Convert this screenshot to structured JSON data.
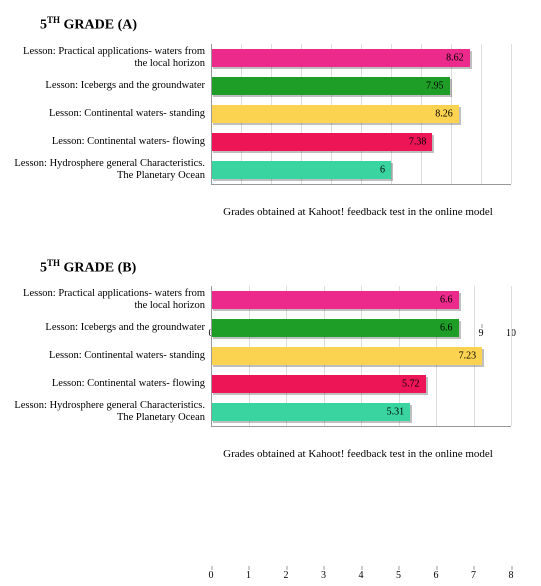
{
  "x_axis_title": "Grades obtained at Kahoot! feedback test in the online model",
  "grid_color": "#dddddd",
  "axis_color": "#999999",
  "charts": [
    {
      "title_prefix": "5",
      "title_sup": "TH",
      "title_suffix": " GRADE (A)",
      "x_max": 10,
      "x_tick_step": 1,
      "bars": [
        {
          "label": "Lesson: Practical applications- waters from the local horizon",
          "value": 8.62,
          "color": "#ec2a8b"
        },
        {
          "label": "Lesson: Icebergs and the groundwater",
          "value": 7.95,
          "color": "#1e9e27"
        },
        {
          "label": "Lesson: Continental waters- standing",
          "value": 8.26,
          "color": "#fcd251"
        },
        {
          "label": "Lesson: Continental waters- flowing",
          "value": 7.38,
          "color": "#ed1556"
        },
        {
          "label": "Lesson: Hydrosphere general Characteristics. The Planetary Ocean",
          "value": 6,
          "color": "#3ad4a0"
        }
      ]
    },
    {
      "title_prefix": "5",
      "title_sup": "TH",
      "title_suffix": " GRADE (B)",
      "x_max": 8,
      "x_tick_step": 1,
      "bars": [
        {
          "label": "Lesson: Practical applications- waters from the local horizon",
          "value": 6.6,
          "color": "#ec2a8b"
        },
        {
          "label": "Lesson: Icebergs and the groundwater",
          "value": 6.6,
          "color": "#1e9e27"
        },
        {
          "label": "Lesson: Continental waters- standing",
          "value": 7.23,
          "color": "#fcd251"
        },
        {
          "label": "Lesson: Continental waters- flowing",
          "value": 5.72,
          "color": "#ed1556"
        },
        {
          "label": "Lesson: Hydrosphere general Characteristics. The Planetary Ocean",
          "value": 5.31,
          "color": "#3ad4a0"
        }
      ]
    }
  ]
}
